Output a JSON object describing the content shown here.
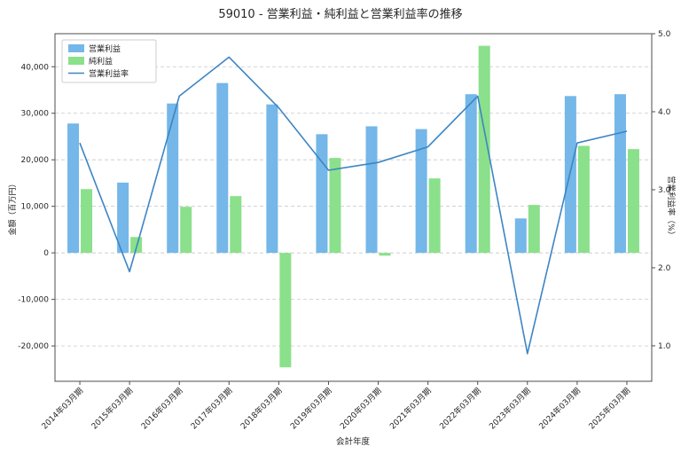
{
  "chart_data": {
    "type": "bar",
    "title": "59010 - 営業利益・純利益と営業利益率の推移",
    "xlabel": "会計年度",
    "ylabel_left": "金額（百万円）",
    "ylabel_right": "営業利益率（%）",
    "categories": [
      "2014年03月期",
      "2015年03月期",
      "2016年03月期",
      "2017年03月期",
      "2018年03月期",
      "2019年03月期",
      "2020年03月期",
      "2021年03月期",
      "2022年03月期",
      "2023年03月期",
      "2024年03月期",
      "2025年03月期"
    ],
    "series": [
      {
        "name": "営業利益",
        "type": "bar",
        "axis": "left",
        "color": "#74b7e8",
        "values": [
          27800,
          15100,
          32100,
          36500,
          31900,
          25500,
          27200,
          26600,
          34100,
          7400,
          33700,
          34100
        ]
      },
      {
        "name": "純利益",
        "type": "bar",
        "axis": "left",
        "color": "#8be08b",
        "values": [
          13700,
          3400,
          9900,
          12200,
          -24600,
          20400,
          -600,
          16000,
          44500,
          10300,
          23000,
          22300
        ]
      },
      {
        "name": "営業利益率",
        "type": "line",
        "axis": "right",
        "color": "#3d85c4",
        "values": [
          3.6,
          1.95,
          4.2,
          4.7,
          4.05,
          3.25,
          3.35,
          3.55,
          4.2,
          0.9,
          3.6,
          3.75
        ]
      }
    ],
    "ylim_left": [
      -27600,
      47100
    ],
    "ylim_right": [
      0.545,
      5.0
    ],
    "yticks_left": [
      40000,
      30000,
      20000,
      10000,
      0,
      -10000,
      -20000
    ],
    "yticks_right": [
      1.0,
      2.0,
      3.0,
      4.0,
      5.0
    ],
    "grid": true,
    "grid_color": "#c8c8c8",
    "axis_color": "#4d4d4d",
    "legend_position": "upper left"
  }
}
